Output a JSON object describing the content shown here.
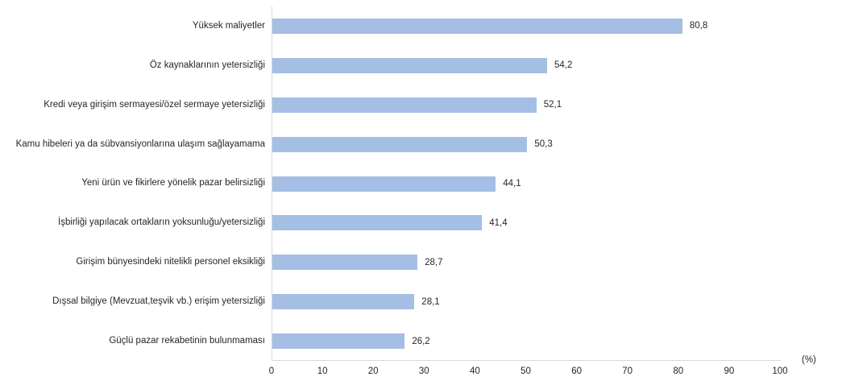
{
  "chart_data": {
    "type": "bar",
    "orientation": "horizontal",
    "title": "",
    "xlabel": "(%)",
    "ylabel": "",
    "xlim": [
      0,
      100
    ],
    "x_ticks": [
      0,
      10,
      20,
      30,
      40,
      50,
      60,
      70,
      80,
      90,
      100
    ],
    "grid": false,
    "legend": false,
    "categories": [
      "Yüksek maliyetler",
      "Öz kaynaklarının yetersizliği",
      "Kredi veya girişim sermayesi/özel sermaye yetersizliği",
      "Kamu hibeleri ya da sübvansiyonlarına ulaşım sağlayamama",
      "Yeni ürün ve fikirlere yönelik pazar belirsizliği",
      "İşbirliği yapılacak ortakların yoksunluğu/yetersizliği",
      "Girişim bünyesindeki nitelikli personel eksikliği",
      "Dışsal bilgiye (Mevzuat,teşvik vb.) erişim yetersizliği",
      "Güçlü pazar rekabetinin bulunmaması"
    ],
    "values": [
      80.8,
      54.2,
      52.1,
      50.3,
      44.1,
      41.4,
      28.7,
      28.1,
      26.2
    ],
    "value_labels": [
      "80,8",
      "54,2",
      "52,1",
      "50,3",
      "44,1",
      "41,4",
      "28,7",
      "28,1",
      "26,2"
    ],
    "bar_color": "#a5bee3",
    "axis_color": "#d9d9d9",
    "text_color": "#262626"
  }
}
